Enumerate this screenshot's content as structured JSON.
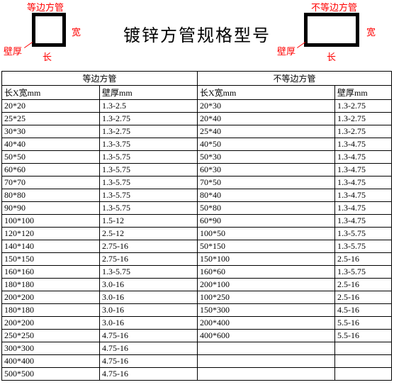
{
  "header": {
    "title": "镀锌方管规格型号",
    "left": {
      "caption": "等边方管",
      "width_label": "宽",
      "length_label": "长",
      "thickness_label": "壁厚"
    },
    "right": {
      "caption": "不等边方管",
      "width_label": "宽",
      "length_label": "长",
      "thickness_label": "壁厚"
    },
    "colors": {
      "label_color": "#ff0000",
      "shape_border": "#000000",
      "title_color": "#000000"
    }
  },
  "table": {
    "group_headers": [
      "等边方管",
      "不等边方管"
    ],
    "col_headers": [
      "长X宽mm",
      "壁厚mm",
      "长X宽mm",
      "壁厚mm"
    ],
    "rows": [
      [
        "20*20",
        "1.3-2.5",
        "20*30",
        "1.3-2.75"
      ],
      [
        "25*25",
        "1.3-2.75",
        "20*40",
        "1.3-2.75"
      ],
      [
        "30*30",
        "1.3-2.75",
        "25*40",
        "1.3-2.75"
      ],
      [
        "40*40",
        "1.3-3.75",
        "40*50",
        "1.3-4.75"
      ],
      [
        "50*50",
        "1.3-5.75",
        "50*30",
        "1.3-4.75"
      ],
      [
        "60*60",
        "1.3-5.75",
        "60*30",
        "1.3-4.75"
      ],
      [
        "70*70",
        "1.3-5.75",
        "70*50",
        "1.3-4.75"
      ],
      [
        "80*80",
        "1.3-5.75",
        "80*40",
        "1.3-4.75"
      ],
      [
        "90*90",
        "1.3-5.75",
        "50*80",
        "1.3-4.75"
      ],
      [
        "100*100",
        "1.5-12",
        "60*90",
        "1.3-4.75"
      ],
      [
        "120*120",
        "2.5-12",
        "100*50",
        "1.3-5.75"
      ],
      [
        "140*140",
        "2.75-16",
        "50*150",
        "1.3-5.75"
      ],
      [
        "150*150",
        "2.75-16",
        "150*100",
        "2.5-16"
      ],
      [
        "160*160",
        "1.3-5.75",
        "160*60",
        "1.3-5.75"
      ],
      [
        "180*180",
        "3.0-16",
        "200*100",
        "2.5-16"
      ],
      [
        "200*200",
        "3.0-16",
        "100*250",
        "2.5-16"
      ],
      [
        "180*180",
        "3.0-16",
        "150*300",
        "4.5-16"
      ],
      [
        "200*200",
        "3.0-16",
        "200*400",
        "5.5-16"
      ],
      [
        "250*250",
        "4.75-16",
        "400*600",
        "5.5-16"
      ],
      [
        "300*300",
        "4.75-16",
        "",
        ""
      ],
      [
        "400*400",
        "4.75-16",
        "",
        ""
      ],
      [
        "500*500",
        "4.75-16",
        "",
        ""
      ]
    ]
  }
}
